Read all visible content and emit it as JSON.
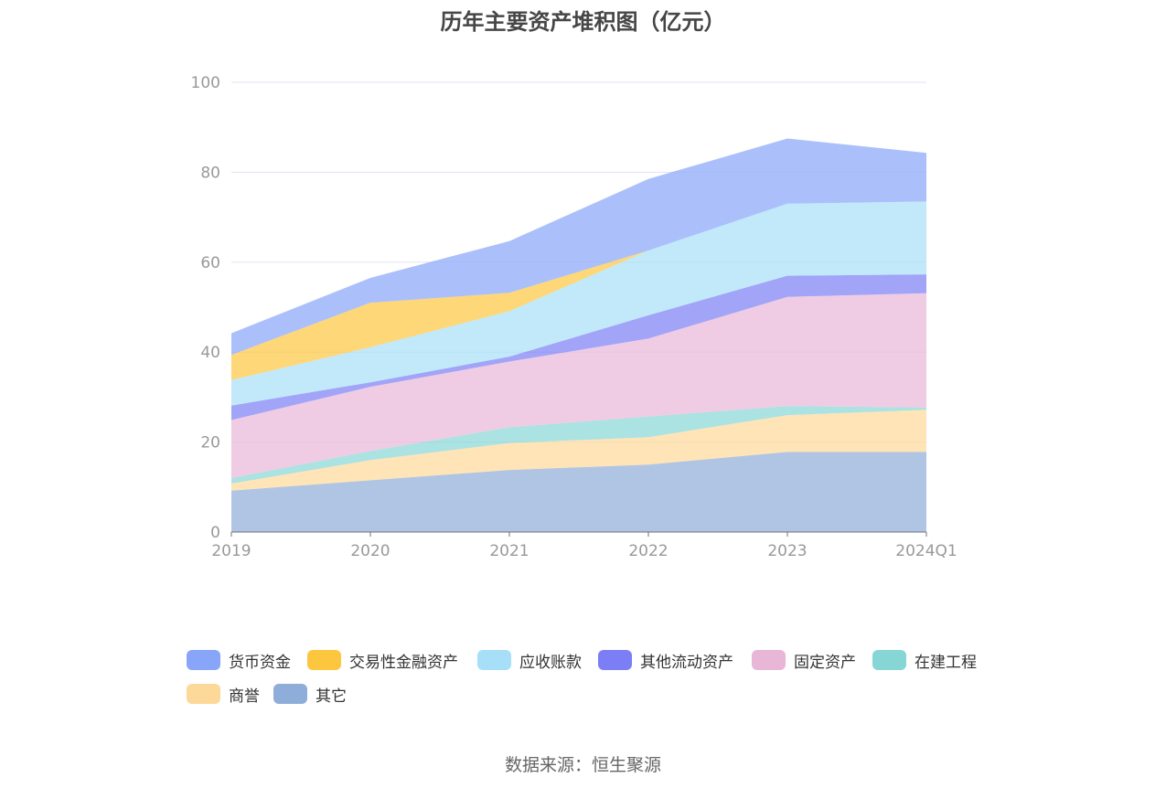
{
  "chart_data": {
    "type": "area",
    "stacked": true,
    "title": "历年主要资产堆积图（亿元）",
    "categories": [
      "2019",
      "2020",
      "2021",
      "2022",
      "2023",
      "2024Q1"
    ],
    "ylim": [
      0,
      100
    ],
    "yticks": [
      0,
      20,
      40,
      60,
      80,
      100
    ],
    "grid": true,
    "legend_position": "bottom",
    "series": [
      {
        "name": "其它",
        "color": "#8fadd9",
        "values": [
          9.2,
          11.5,
          13.8,
          15.0,
          17.8,
          17.8
        ]
      },
      {
        "name": "商誉",
        "color": "#fdd999",
        "values": [
          1.6,
          4.5,
          6.0,
          6.1,
          8.2,
          9.4
        ]
      },
      {
        "name": "在建工程",
        "color": "#87d6d6",
        "values": [
          1.2,
          2.0,
          3.5,
          4.6,
          2.0,
          0.5
        ]
      },
      {
        "name": "固定资产",
        "color": "#e8b7d8",
        "values": [
          12.9,
          14.3,
          14.6,
          17.3,
          24.3,
          25.4
        ]
      },
      {
        "name": "其他流动资产",
        "color": "#7b7ef5",
        "values": [
          3.2,
          1.0,
          1.1,
          5.2,
          4.7,
          4.2
        ]
      },
      {
        "name": "应收账款",
        "color": "#a7dff8",
        "values": [
          5.7,
          7.8,
          10.1,
          14.4,
          16.0,
          16.2
        ]
      },
      {
        "name": "交易性金融资产",
        "color": "#fcc63f",
        "values": [
          5.6,
          9.9,
          4.1,
          0.0,
          0.0,
          0.0
        ]
      },
      {
        "name": "货币资金",
        "color": "#88a5fa",
        "values": [
          4.8,
          5.5,
          11.5,
          15.9,
          14.5,
          10.8
        ]
      }
    ]
  },
  "legend_order": [
    "货币资金",
    "交易性金融资产",
    "应收账款",
    "其他流动资产",
    "固定资产",
    "在建工程",
    "商誉",
    "其它"
  ],
  "source_note": "数据来源：恒生聚源"
}
